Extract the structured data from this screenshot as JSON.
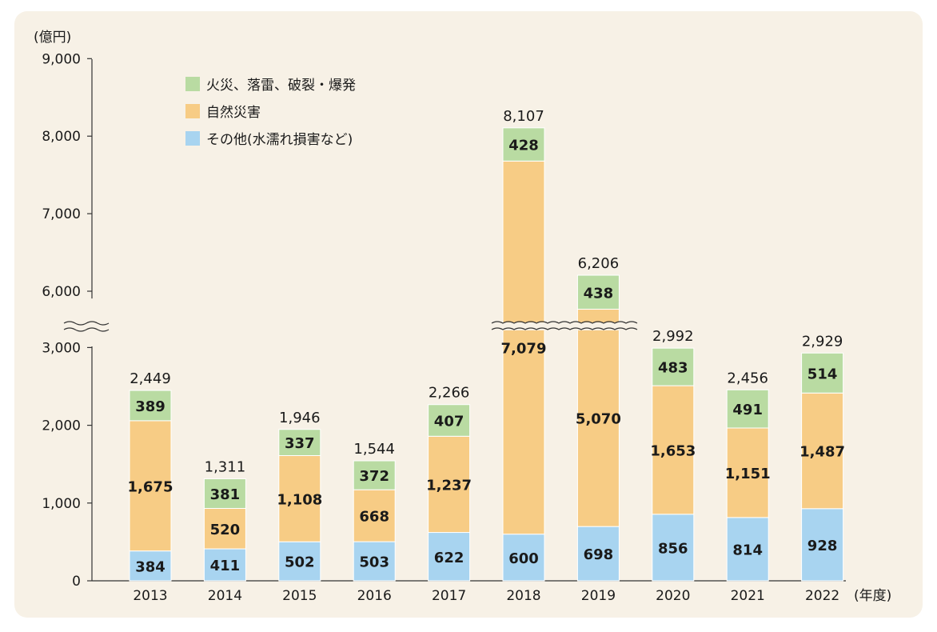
{
  "chart_data": {
    "type": "bar",
    "stacked": true,
    "y_unit": "(億円)",
    "x_unit": "(年度)",
    "y_ticks_lower": [
      "0",
      "1,000",
      "2,000",
      "3,000"
    ],
    "y_ticks_upper": [
      "6,000",
      "7,000",
      "8,000",
      "9,000"
    ],
    "axis_break": {
      "from": 3200,
      "to": 5700
    },
    "categories": [
      "2013",
      "2014",
      "2015",
      "2016",
      "2017",
      "2018",
      "2019",
      "2020",
      "2021",
      "2022"
    ],
    "series": [
      {
        "name": "その他(水濡れ損害など)",
        "color": "#a8d4f0",
        "values": [
          384,
          411,
          502,
          503,
          622,
          600,
          698,
          856,
          814,
          928
        ],
        "labels": [
          "384",
          "411",
          "502",
          "503",
          "622",
          "600",
          "698",
          "856",
          "814",
          "928"
        ]
      },
      {
        "name": "自然災害",
        "color": "#f7cc85",
        "values": [
          1675,
          520,
          1108,
          668,
          1237,
          7079,
          5070,
          1653,
          1151,
          1487
        ],
        "labels": [
          "1,675",
          "520",
          "1,108",
          "668",
          "1,237",
          "7,079",
          "5,070",
          "1,653",
          "1,151",
          "1,487"
        ]
      },
      {
        "name": "火災、落雷、破裂・爆発",
        "color": "#b9dba2",
        "values": [
          389,
          381,
          337,
          372,
          407,
          428,
          438,
          483,
          491,
          514
        ],
        "labels": [
          "389",
          "381",
          "337",
          "372",
          "407",
          "428",
          "438",
          "483",
          "491",
          "514"
        ]
      }
    ],
    "totals": [
      "2,449",
      "1,311",
      "1,946",
      "1,544",
      "2,266",
      "8,107",
      "6,206",
      "2,992",
      "2,456",
      "2,929"
    ],
    "legend_order": [
      2,
      1,
      0
    ],
    "legend_position": "top-left"
  }
}
